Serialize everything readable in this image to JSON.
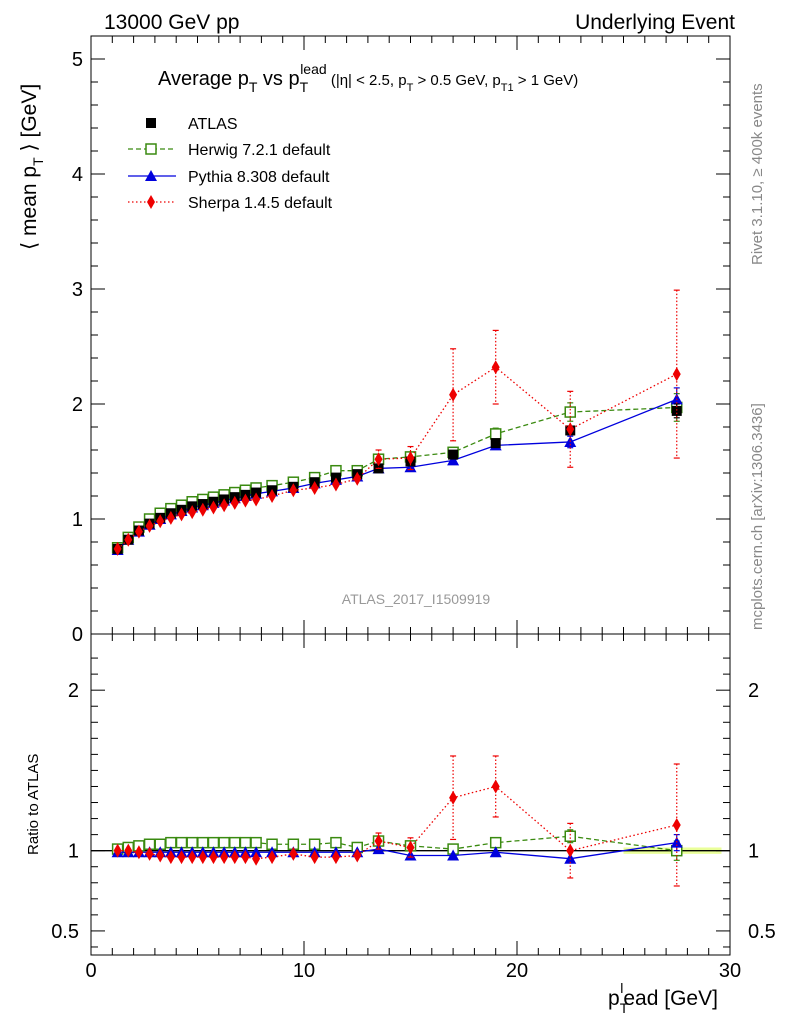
{
  "header": {
    "left": "13000 GeV pp",
    "right": "Underlying Event"
  },
  "side": {
    "rivet": "Rivet 3.1.10, ≥ 400k events",
    "mcplots": "mcplots.cern.ch [arXiv:1306.3436]"
  },
  "watermark": "ATLAS_2017_I1509919",
  "chart_data": [
    {
      "type": "scatter",
      "title": {
        "main": "Average p",
        "main_sub": "T",
        "vs": " vs p",
        "vs_sub": "T",
        "vs_sup": "lead",
        "cut1": " (|η| < 2.5, p",
        "cut1_sub": "T",
        "cut2": " > 0.5 GeV, p",
        "cut2_sub": "T1",
        "cut3": " > 1 GeV)"
      },
      "ylabel": {
        "pre": "⟨ mean p",
        "sub": "T",
        "post": " ⟩ [GeV]"
      },
      "xlim": [
        0,
        30
      ],
      "ylim": [
        0,
        5.2
      ],
      "yticks": [
        0,
        1,
        2,
        3,
        4,
        5
      ],
      "ytick_labels": [
        "0",
        "1",
        "2",
        "3",
        "4",
        "5"
      ],
      "series": [
        {
          "name": "ATLAS",
          "color": "#000000",
          "marker": "square",
          "x": [
            1.25,
            1.75,
            2.25,
            2.75,
            3.25,
            3.75,
            4.25,
            4.75,
            5.25,
            5.75,
            6.25,
            6.75,
            7.25,
            7.75,
            8.5,
            9.5,
            10.5,
            11.5,
            12.5,
            13.5,
            15,
            17,
            19,
            22.5,
            27.5
          ],
          "y": [
            0.74,
            0.82,
            0.9,
            0.96,
            1.01,
            1.05,
            1.08,
            1.11,
            1.13,
            1.15,
            1.17,
            1.19,
            1.21,
            1.23,
            1.25,
            1.28,
            1.32,
            1.36,
            1.39,
            1.44,
            1.5,
            1.56,
            1.66,
            1.77,
            1.94
          ],
          "err": [
            0.01,
            0.01,
            0.01,
            0.01,
            0.01,
            0.01,
            0.01,
            0.01,
            0.01,
            0.01,
            0.01,
            0.01,
            0.01,
            0.01,
            0.01,
            0.01,
            0.02,
            0.02,
            0.02,
            0.02,
            0.02,
            0.03,
            0.03,
            0.04,
            0.06
          ]
        },
        {
          "name": "Herwig 7.2.1 default",
          "color": "#3a8a10",
          "marker": "open-square",
          "line": "dashed",
          "x": [
            1.25,
            1.75,
            2.25,
            2.75,
            3.25,
            3.75,
            4.25,
            4.75,
            5.25,
            5.75,
            6.25,
            6.75,
            7.25,
            7.75,
            8.5,
            9.5,
            10.5,
            11.5,
            12.5,
            13.5,
            15,
            17,
            19,
            22.5,
            27.5
          ],
          "y": [
            0.75,
            0.84,
            0.93,
            1.0,
            1.05,
            1.09,
            1.12,
            1.15,
            1.17,
            1.19,
            1.21,
            1.23,
            1.25,
            1.27,
            1.29,
            1.32,
            1.36,
            1.42,
            1.42,
            1.52,
            1.54,
            1.58,
            1.74,
            1.93,
            1.97
          ],
          "err": [
            0.01,
            0.01,
            0.01,
            0.01,
            0.01,
            0.01,
            0.01,
            0.01,
            0.01,
            0.01,
            0.01,
            0.01,
            0.01,
            0.01,
            0.01,
            0.01,
            0.02,
            0.02,
            0.02,
            0.04,
            0.03,
            0.04,
            0.05,
            0.08,
            0.12
          ]
        },
        {
          "name": "Pythia 8.308 default",
          "color": "#0000dd",
          "marker": "triangle",
          "line": "solid",
          "x": [
            1.25,
            1.75,
            2.25,
            2.75,
            3.25,
            3.75,
            4.25,
            4.75,
            5.25,
            5.75,
            6.25,
            6.75,
            7.25,
            7.75,
            8.5,
            9.5,
            10.5,
            11.5,
            12.5,
            13.5,
            15,
            17,
            19,
            22.5,
            27.5
          ],
          "y": [
            0.73,
            0.82,
            0.89,
            0.95,
            1.0,
            1.04,
            1.07,
            1.1,
            1.12,
            1.14,
            1.16,
            1.18,
            1.2,
            1.22,
            1.24,
            1.27,
            1.31,
            1.34,
            1.37,
            1.44,
            1.45,
            1.51,
            1.64,
            1.67,
            2.04
          ],
          "err": [
            0.01,
            0.01,
            0.01,
            0.01,
            0.01,
            0.01,
            0.01,
            0.01,
            0.01,
            0.01,
            0.01,
            0.01,
            0.01,
            0.01,
            0.01,
            0.01,
            0.02,
            0.02,
            0.02,
            0.02,
            0.02,
            0.03,
            0.03,
            0.05,
            0.1
          ]
        },
        {
          "name": "Sherpa 1.4.5 default",
          "color": "#ee0000",
          "marker": "diamond",
          "line": "dotted",
          "x": [
            1.25,
            1.75,
            2.25,
            2.75,
            3.25,
            3.75,
            4.25,
            4.75,
            5.25,
            5.75,
            6.25,
            6.75,
            7.25,
            7.75,
            8.5,
            9.5,
            10.5,
            11.5,
            12.5,
            13.5,
            15,
            17,
            19,
            22.5,
            27.5
          ],
          "y": [
            0.74,
            0.82,
            0.89,
            0.94,
            0.98,
            1.01,
            1.04,
            1.06,
            1.08,
            1.1,
            1.12,
            1.14,
            1.16,
            1.17,
            1.2,
            1.25,
            1.27,
            1.3,
            1.35,
            1.52,
            1.53,
            2.08,
            2.32,
            1.78,
            2.26
          ],
          "err": [
            0.01,
            0.01,
            0.01,
            0.01,
            0.01,
            0.01,
            0.01,
            0.01,
            0.01,
            0.01,
            0.01,
            0.01,
            0.01,
            0.01,
            0.02,
            0.03,
            0.03,
            0.03,
            0.04,
            0.08,
            0.1,
            0.4,
            0.32,
            0.33,
            0.73
          ]
        }
      ]
    },
    {
      "type": "scatter",
      "ylabel": "Ratio to ATLAS",
      "xlabel": {
        "pre": "p",
        "sub": "T",
        "sup": "l",
        "post": "ead [GeV]"
      },
      "xlim": [
        0,
        30
      ],
      "ylim": [
        0.35,
        2.35
      ],
      "xticks": [
        0,
        10,
        20,
        30
      ],
      "xtick_labels": [
        "0",
        "10",
        "20",
        "30"
      ],
      "yticks": [
        0.5,
        1,
        2
      ],
      "ytick_labels": [
        "0.5",
        "1",
        "2"
      ],
      "band_color": "#eaff9a",
      "series": [
        {
          "name": "Herwig 7.2.1 default",
          "color": "#3a8a10",
          "marker": "open-square",
          "line": "dashed",
          "x": [
            1.25,
            1.75,
            2.25,
            2.75,
            3.25,
            3.75,
            4.25,
            4.75,
            5.25,
            5.75,
            6.25,
            6.75,
            7.25,
            7.75,
            8.5,
            9.5,
            10.5,
            11.5,
            12.5,
            13.5,
            15,
            17,
            19,
            22.5,
            27.5
          ],
          "y": [
            1.01,
            1.02,
            1.03,
            1.04,
            1.04,
            1.05,
            1.05,
            1.05,
            1.05,
            1.05,
            1.05,
            1.05,
            1.05,
            1.05,
            1.04,
            1.04,
            1.04,
            1.05,
            1.02,
            1.06,
            1.03,
            1.01,
            1.05,
            1.09,
            1.0
          ],
          "err": [
            0.01,
            0.01,
            0.01,
            0.01,
            0.01,
            0.01,
            0.01,
            0.01,
            0.01,
            0.01,
            0.01,
            0.01,
            0.01,
            0.01,
            0.01,
            0.01,
            0.01,
            0.01,
            0.01,
            0.02,
            0.02,
            0.02,
            0.03,
            0.04,
            0.06
          ]
        },
        {
          "name": "Pythia 8.308 default",
          "color": "#0000dd",
          "marker": "triangle",
          "line": "solid",
          "x": [
            1.25,
            1.75,
            2.25,
            2.75,
            3.25,
            3.75,
            4.25,
            4.75,
            5.25,
            5.75,
            6.25,
            6.75,
            7.25,
            7.75,
            8.5,
            9.5,
            10.5,
            11.5,
            12.5,
            13.5,
            15,
            17,
            19,
            22.5,
            27.5
          ],
          "y": [
            0.99,
            0.99,
            0.99,
            0.99,
            0.99,
            0.99,
            0.99,
            0.99,
            0.99,
            0.99,
            0.99,
            0.99,
            0.99,
            0.99,
            0.99,
            0.99,
            0.99,
            0.99,
            0.99,
            1.01,
            0.97,
            0.97,
            0.99,
            0.95,
            1.05
          ],
          "err": [
            0.01,
            0.01,
            0.01,
            0.01,
            0.01,
            0.01,
            0.01,
            0.01,
            0.01,
            0.01,
            0.01,
            0.01,
            0.01,
            0.01,
            0.01,
            0.01,
            0.01,
            0.01,
            0.01,
            0.02,
            0.02,
            0.02,
            0.02,
            0.03,
            0.05
          ]
        },
        {
          "name": "Sherpa 1.4.5 default",
          "color": "#ee0000",
          "marker": "diamond",
          "line": "dotted",
          "x": [
            1.25,
            1.75,
            2.25,
            2.75,
            3.25,
            3.75,
            4.25,
            4.75,
            5.25,
            5.75,
            6.25,
            6.75,
            7.25,
            7.75,
            8.5,
            9.5,
            10.5,
            11.5,
            12.5,
            13.5,
            15,
            17,
            19,
            22.5,
            27.5
          ],
          "y": [
            1.0,
            1.0,
            0.99,
            0.98,
            0.97,
            0.96,
            0.96,
            0.96,
            0.96,
            0.96,
            0.96,
            0.96,
            0.96,
            0.95,
            0.96,
            0.98,
            0.96,
            0.96,
            0.97,
            1.06,
            1.02,
            1.33,
            1.4,
            1.0,
            1.16
          ],
          "err": [
            0.01,
            0.01,
            0.01,
            0.01,
            0.01,
            0.01,
            0.01,
            0.01,
            0.01,
            0.01,
            0.01,
            0.01,
            0.01,
            0.01,
            0.02,
            0.02,
            0.02,
            0.02,
            0.03,
            0.05,
            0.06,
            0.26,
            0.19,
            0.17,
            0.38
          ]
        }
      ]
    }
  ]
}
